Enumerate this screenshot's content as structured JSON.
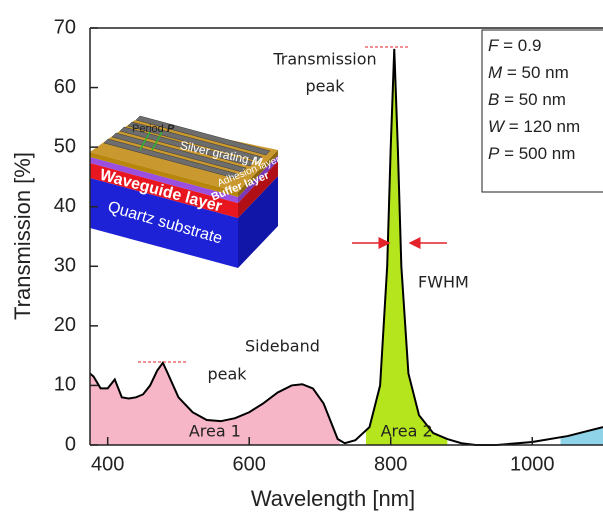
{
  "chart_data": {
    "type": "line",
    "x_label": "Wavelength [nm]",
    "y_label": "Transmission [%]",
    "xlim": [
      375,
      1100
    ],
    "ylim": [
      0,
      70
    ],
    "xticks": [
      400,
      600,
      800,
      1000
    ],
    "yticks": [
      0,
      10,
      20,
      30,
      40,
      50,
      60,
      70
    ],
    "color": "#000000",
    "x": [
      375,
      380,
      390,
      400,
      410,
      420,
      430,
      440,
      450,
      460,
      470,
      478,
      485,
      500,
      520,
      540,
      560,
      580,
      600,
      620,
      640,
      660,
      675,
      690,
      705,
      715,
      725,
      735,
      750,
      770,
      785,
      795,
      800,
      805,
      810,
      815,
      825,
      840,
      860,
      880,
      900,
      920,
      950,
      1000,
      1050,
      1100
    ],
    "values": [
      12,
      11.5,
      9.5,
      9.5,
      11,
      8,
      7.8,
      8,
      8.5,
      10,
      12.5,
      13.8,
      12,
      8,
      5.5,
      4.2,
      4,
      4.5,
      5.5,
      7,
      8.8,
      10,
      10.2,
      9.5,
      7,
      4,
      1,
      0.3,
      0.8,
      3,
      10,
      30,
      50,
      66.5,
      50,
      30,
      12,
      5,
      2,
      1,
      0.3,
      0,
      0,
      0.5,
      1.5,
      3
    ],
    "areas": [
      {
        "label": "Area 1",
        "color": "#f7b6c8",
        "xrange": [
          375,
          728
        ]
      },
      {
        "label": "Area 2",
        "color": "#b5e61d",
        "xrange": [
          765,
          880
        ]
      },
      {
        "color": "#8fd3e8",
        "xrange": [
          1040,
          1100
        ]
      }
    ],
    "annotations": {
      "peak": [
        "Transmission",
        "peak"
      ],
      "sideband": [
        "Sideband",
        "peak"
      ],
      "fwhm": "FWHM"
    },
    "parameters": [
      {
        "symbol": "F",
        "text": " = 0.9"
      },
      {
        "symbol": "M",
        "text": " = 50 nm"
      },
      {
        "symbol": "B",
        "text": " = 50 nm"
      },
      {
        "symbol": "W",
        "text": " = 120 nm"
      },
      {
        "symbol": "P",
        "text": " = 500 nm"
      }
    ],
    "inset": {
      "period": {
        "text": "Period ",
        "symbol": "P"
      },
      "grating": {
        "text": "Silver grating ",
        "symbol": "M"
      },
      "adhesion": "Adhesion layer",
      "buffer": "Buffer layer",
      "waveguide": "Waveguide layer",
      "substrate": "Quartz substrate"
    }
  }
}
